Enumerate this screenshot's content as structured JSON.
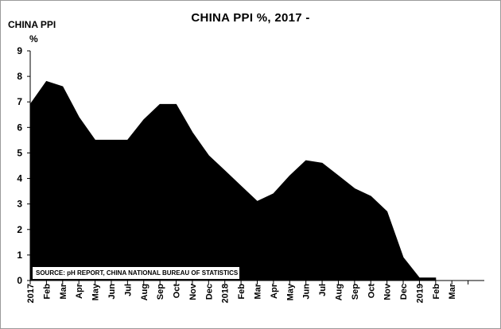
{
  "chart_data": {
    "type": "area",
    "title": "CHINA PPI %, 2017 -",
    "ylabel": "CHINA PPI",
    "yunit": "%",
    "ylim": [
      0,
      9
    ],
    "yticks": [
      0,
      1,
      2,
      3,
      4,
      5,
      6,
      7,
      8,
      9
    ],
    "grid": false,
    "legend": "none",
    "fill_color": "#000000",
    "categories": [
      "2017",
      "Feb",
      "Mar",
      "Apr",
      "May",
      "Jun",
      "Jul",
      "Aug",
      "Sep",
      "Oct",
      "Nov",
      "Dec",
      "2018",
      "Feb",
      "Mar",
      "Apr",
      "May",
      "Jun",
      "Jul",
      "Aug",
      "Sep",
      "Oct",
      "Nov",
      "Dec",
      "2019",
      "Feb",
      "Mar"
    ],
    "values": [
      6.9,
      7.8,
      7.6,
      6.4,
      5.5,
      5.5,
      5.5,
      6.3,
      6.9,
      6.9,
      5.8,
      4.9,
      4.3,
      3.7,
      3.1,
      3.4,
      4.1,
      4.7,
      4.6,
      4.1,
      3.6,
      3.3,
      2.7,
      0.9,
      0.1,
      0.1,
      null
    ],
    "source": "SOURCE: pH REPORT, CHINA NATIONAL BUREAU OF STATISTICS"
  }
}
